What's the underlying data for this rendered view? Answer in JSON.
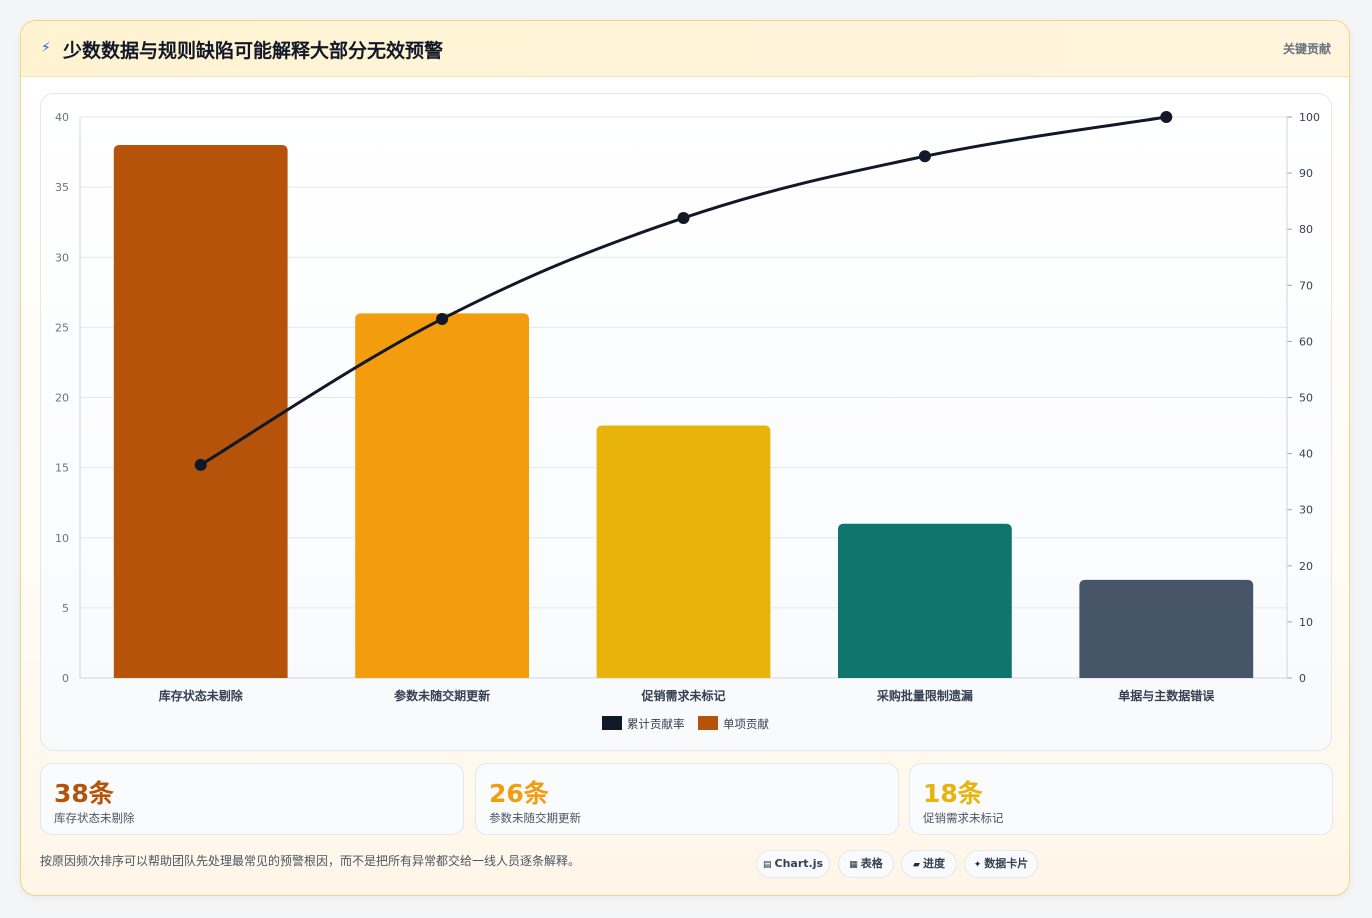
{
  "header": {
    "icon": "lightning-icon",
    "title": "少数数据与规则缺陷可能解释大部分无效预警",
    "tag": "关键贡献"
  },
  "chart_data": {
    "type": "bar",
    "categories": [
      "库存状态未剔除",
      "参数未随交期更新",
      "促销需求未标记",
      "采购批量限制遗漏",
      "单据与主数据错误"
    ],
    "series": [
      {
        "name": "单项贡献",
        "type": "bar",
        "axis": "left",
        "values": [
          38,
          26,
          18,
          11,
          7
        ],
        "colors": [
          "#b45309",
          "#f39c0d",
          "#e8b30b",
          "#0f766e",
          "#475569"
        ]
      },
      {
        "name": "累计贡献率",
        "type": "line",
        "axis": "right",
        "values": [
          38,
          64,
          82,
          93,
          100
        ],
        "color": "#111827"
      }
    ],
    "ylim_left": [
      0,
      40
    ],
    "yticks_left": [
      0,
      5,
      10,
      15,
      20,
      25,
      30,
      35,
      40
    ],
    "ylim_right": [
      0,
      100
    ],
    "yticks_right": [
      0,
      10,
      20,
      30,
      40,
      50,
      60,
      70,
      80,
      90,
      100
    ],
    "legend": [
      "累计贡献率",
      "单项贡献"
    ],
    "legend_position": "bottom",
    "grid": true
  },
  "stats": [
    {
      "value": "38条",
      "label": "库存状态未剔除",
      "color": "#b45309"
    },
    {
      "value": "26条",
      "label": "参数未随交期更新",
      "color": "#f39c0d"
    },
    {
      "value": "18条",
      "label": "促销需求未标记",
      "color": "#e8b30b"
    }
  ],
  "footnote": "按原因频次排序可以帮助团队先处理最常见的预警根因，而不是把所有异常都交给一线人员逐条解释。",
  "pills": [
    {
      "icon": "chart-icon",
      "glyph": "▤",
      "label": "Chart.js"
    },
    {
      "icon": "table-icon",
      "glyph": "▦",
      "label": "表格"
    },
    {
      "icon": "progress-icon",
      "glyph": "▰",
      "label": "进度"
    },
    {
      "icon": "sparkle-icon",
      "glyph": "✦",
      "label": "数据卡片"
    }
  ]
}
